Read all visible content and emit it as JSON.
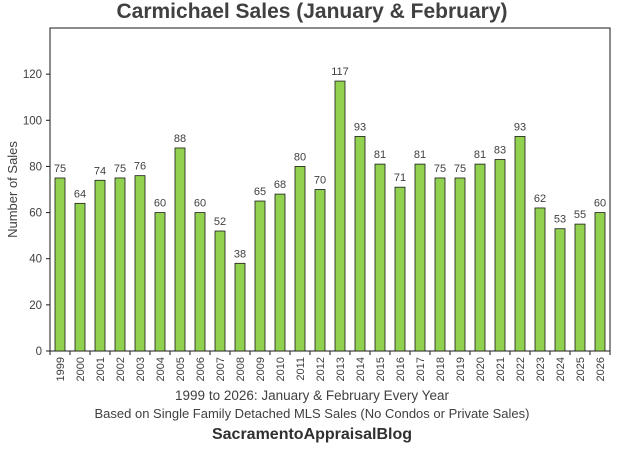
{
  "chart_data": {
    "type": "bar",
    "title": "Carmichael Sales (January & February)",
    "ylabel": "Number of Sales",
    "xlabel_line1": "1999 to 2026: January & February Every Year",
    "xlabel_line2": "Based on Single Family Detached MLS Sales (No Condos or Private Sales)",
    "ylim": [
      0,
      140
    ],
    "yticks": [
      0,
      20,
      40,
      60,
      80,
      100,
      120
    ],
    "grid": false,
    "bar_color": "#92d050",
    "bar_edge_color": "#1a1a1a",
    "categories": [
      "1999",
      "2000",
      "2001",
      "2002",
      "2003",
      "2004",
      "2005",
      "2006",
      "2007",
      "2008",
      "2009",
      "2010",
      "2011",
      "2012",
      "2013",
      "2014",
      "2015",
      "2016",
      "2017",
      "2018",
      "2019",
      "2020",
      "2021",
      "2022",
      "2023",
      "2024",
      "2025",
      "2026"
    ],
    "values": [
      75,
      64,
      74,
      75,
      76,
      60,
      88,
      60,
      52,
      38,
      65,
      68,
      80,
      70,
      117,
      93,
      81,
      71,
      81,
      75,
      75,
      81,
      83,
      93,
      62,
      53,
      55,
      60
    ]
  },
  "brand": "SacramentoAppraisalBlog"
}
